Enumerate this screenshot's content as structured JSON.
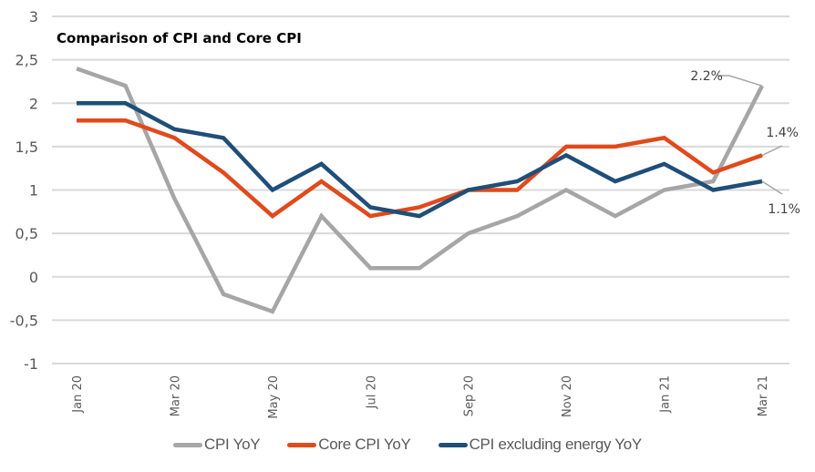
{
  "chart_data": {
    "type": "line",
    "title": "Comparison of CPI and Core CPI",
    "xlabel": "",
    "ylabel": "",
    "ylim": [
      -1,
      3
    ],
    "yticks": [
      -1,
      -0.5,
      0,
      0.5,
      1,
      1.5,
      2,
      2.5,
      3
    ],
    "ytick_labels": [
      "-1",
      "-0,5",
      "0",
      "0,5",
      "1",
      "1,5",
      "2",
      "2,5",
      "3"
    ],
    "grid": true,
    "legend_position": "bottom",
    "x": [
      "Jan 20",
      "Feb 20",
      "Mar 20",
      "Apr 20",
      "May 20",
      "Jun 20",
      "Jul 20",
      "Aug 20",
      "Sep 20",
      "Oct 20",
      "Nov 20",
      "Dec 20",
      "Jan 21",
      "Feb 21",
      "Mar 21"
    ],
    "xtick_labels": [
      "Jan 20",
      "Mar 20",
      "May 20",
      "Jul 20",
      "Sep 20",
      "Nov 20",
      "Jan 21",
      "Mar 21"
    ],
    "series": [
      {
        "name": "CPI YoY",
        "color": "#a6a6a6",
        "values": [
          2.4,
          2.2,
          0.9,
          -0.2,
          -0.4,
          0.7,
          0.1,
          0.1,
          0.5,
          0.7,
          1.0,
          0.7,
          1.0,
          1.1,
          2.2
        ],
        "end_label": "2.2%"
      },
      {
        "name": "Core CPI YoY",
        "color": "#e04a1c",
        "values": [
          1.8,
          1.8,
          1.6,
          1.2,
          0.7,
          1.1,
          0.7,
          0.8,
          1.0,
          1.0,
          1.5,
          1.5,
          1.6,
          1.2,
          1.4
        ],
        "end_label": "1.4%"
      },
      {
        "name": "CPI excluding energy YoY",
        "color": "#1f4e79",
        "values": [
          2.0,
          2.0,
          1.7,
          1.6,
          1.0,
          1.3,
          0.8,
          0.7,
          1.0,
          1.1,
          1.4,
          1.1,
          1.3,
          1.0,
          1.1
        ],
        "end_label": "1.1%"
      }
    ]
  }
}
